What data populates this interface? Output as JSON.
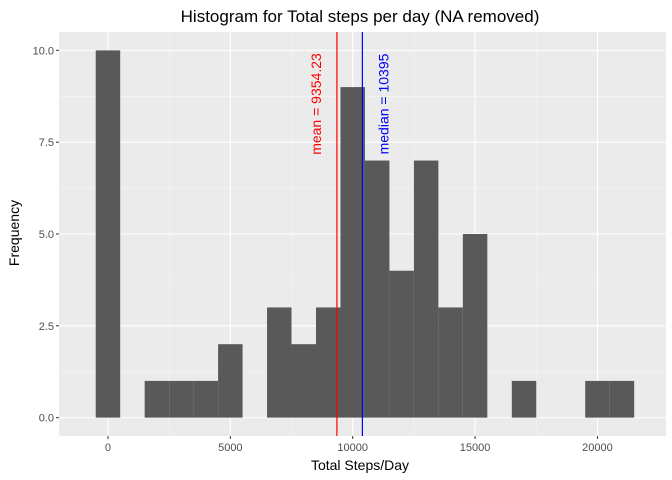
{
  "chart_data": {
    "type": "bar",
    "title": "Histogram for Total steps per day (NA removed)",
    "xlabel": "Total Steps/Day",
    "ylabel": "Frequency",
    "bin_width": 1000,
    "bins": [
      {
        "center": 0,
        "count": 10
      },
      {
        "center": 1000,
        "count": 0
      },
      {
        "center": 2000,
        "count": 1
      },
      {
        "center": 3000,
        "count": 1
      },
      {
        "center": 4000,
        "count": 1
      },
      {
        "center": 5000,
        "count": 2
      },
      {
        "center": 6000,
        "count": 0
      },
      {
        "center": 7000,
        "count": 3
      },
      {
        "center": 8000,
        "count": 2
      },
      {
        "center": 9000,
        "count": 3
      },
      {
        "center": 10000,
        "count": 9
      },
      {
        "center": 11000,
        "count": 7
      },
      {
        "center": 12000,
        "count": 4
      },
      {
        "center": 13000,
        "count": 7
      },
      {
        "center": 14000,
        "count": 3
      },
      {
        "center": 15000,
        "count": 5
      },
      {
        "center": 16000,
        "count": 0
      },
      {
        "center": 17000,
        "count": 1
      },
      {
        "center": 18000,
        "count": 0
      },
      {
        "center": 19000,
        "count": 0
      },
      {
        "center": 20000,
        "count": 1
      },
      {
        "center": 21000,
        "count": 1
      }
    ],
    "xlim": [
      -2000,
      22800
    ],
    "ylim": [
      -0.5,
      10.5
    ],
    "x_ticks": [
      0,
      5000,
      10000,
      15000,
      20000
    ],
    "x_tick_labels": [
      "0",
      "5000",
      "10000",
      "15000",
      "20000"
    ],
    "y_ticks": [
      0,
      2.5,
      5,
      7.5,
      10
    ],
    "y_tick_labels": [
      "0.0",
      "2.5",
      "5.0",
      "7.5",
      "10.0"
    ],
    "grid": true,
    "reference_lines": [
      {
        "value": 9354.23,
        "label": "mean = 9354.23",
        "color": "#ff0000"
      },
      {
        "value": 10395,
        "label": "median = 10395",
        "color": "#0000ff"
      }
    ],
    "colors": {
      "bar": "#595959",
      "panel": "#ebebeb",
      "grid_major": "#ffffff",
      "grid_minor": "#f5f5f5"
    }
  }
}
